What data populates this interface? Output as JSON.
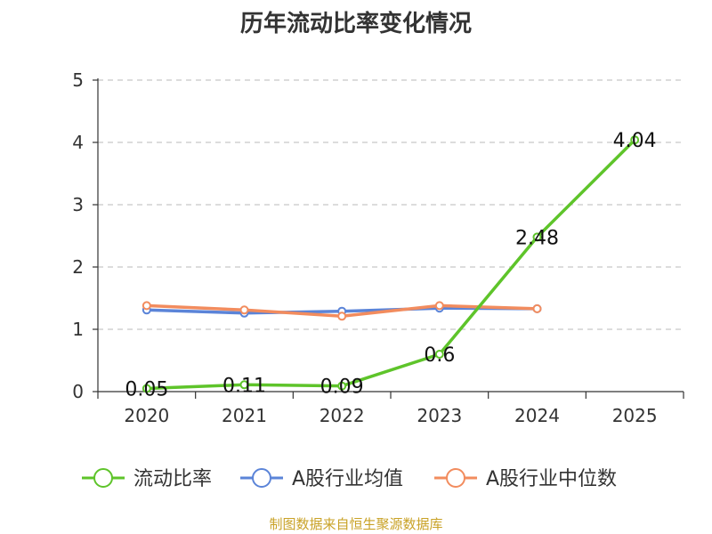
{
  "chart_data": {
    "type": "line",
    "title": "历年流动比率变化情况",
    "categories": [
      "2020",
      "2021",
      "2022",
      "2023",
      "2024",
      "2025"
    ],
    "ylim": [
      0,
      5
    ],
    "yticks": [
      "0",
      "1",
      "2",
      "3",
      "4",
      "5"
    ],
    "grid": true,
    "legend_position": "bottom",
    "series": [
      {
        "name": "流动比率",
        "color": "#5ec42a",
        "values": [
          0.05,
          0.11,
          0.09,
          0.6,
          2.48,
          4.04
        ],
        "labels": [
          "0.05",
          "0.11",
          "0.09",
          "0.6",
          "2.48",
          "4.04"
        ]
      },
      {
        "name": "A股行业均值",
        "color": "#5b84d8",
        "values": [
          1.31,
          1.26,
          1.29,
          1.34,
          1.33,
          null
        ]
      },
      {
        "name": "A股行业中位数",
        "color": "#f28c5e",
        "values": [
          1.38,
          1.31,
          1.21,
          1.38,
          1.33,
          null
        ]
      }
    ]
  },
  "source": "制图数据来自恒生聚源数据库"
}
